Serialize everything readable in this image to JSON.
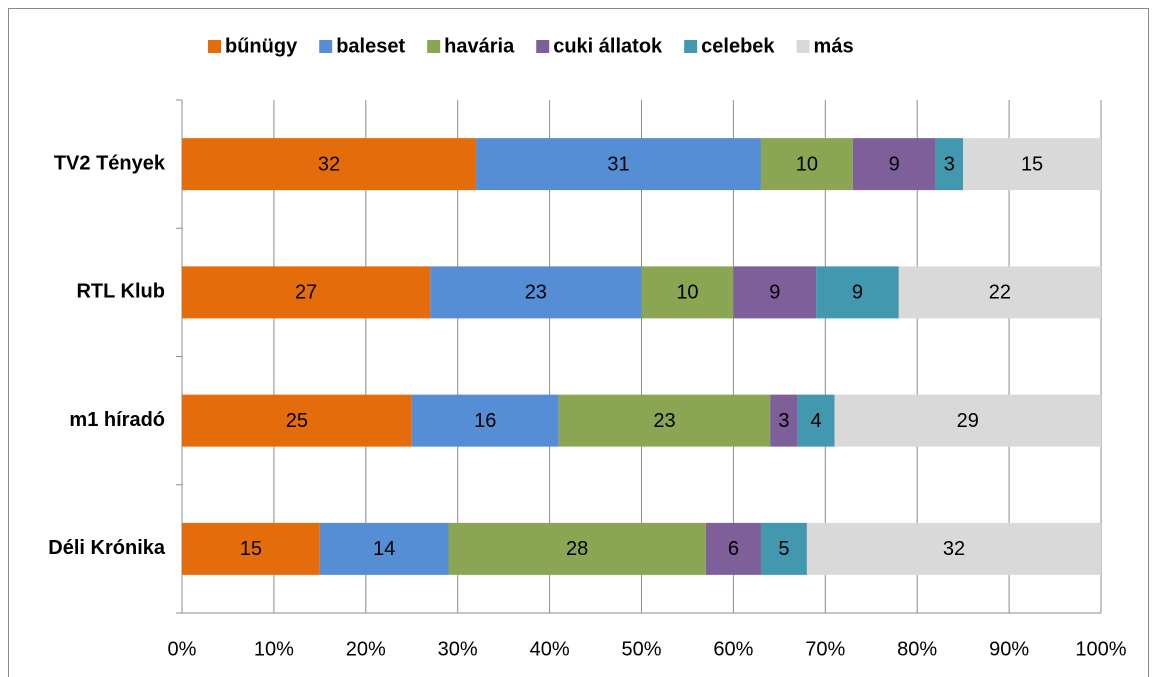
{
  "chart_data": {
    "type": "stacked-bar-horizontal",
    "categories": [
      "TV2 Tények",
      "RTL Klub",
      "m1 híradó",
      "Déli Krónika"
    ],
    "series": [
      {
        "name": "bűnügy",
        "color": "#e46c0a",
        "values": [
          32,
          27,
          25,
          15
        ]
      },
      {
        "name": "baleset",
        "color": "#558ed5",
        "values": [
          31,
          23,
          16,
          14
        ]
      },
      {
        "name": "havária",
        "color": "#8aa653",
        "values": [
          10,
          10,
          23,
          28
        ]
      },
      {
        "name": "cuki állatok",
        "color": "#7f5f9a",
        "values": [
          9,
          9,
          3,
          6
        ]
      },
      {
        "name": "celebek",
        "color": "#4298af",
        "values": [
          3,
          9,
          4,
          5
        ]
      },
      {
        "name": "más",
        "color": "#d9d9d9",
        "values": [
          15,
          22,
          29,
          32
        ]
      }
    ],
    "xlim": [
      0,
      100
    ],
    "xticks": [
      {
        "value": 0,
        "label": "0%"
      },
      {
        "value": 10,
        "label": "10%"
      },
      {
        "value": 20,
        "label": "20%"
      },
      {
        "value": 30,
        "label": "30%"
      },
      {
        "value": 40,
        "label": "40%"
      },
      {
        "value": 50,
        "label": "50%"
      },
      {
        "value": 60,
        "label": "60%"
      },
      {
        "value": 70,
        "label": "70%"
      },
      {
        "value": 80,
        "label": "80%"
      },
      {
        "value": 90,
        "label": "90%"
      },
      {
        "value": 100,
        "label": "100%"
      }
    ],
    "grid": true,
    "legend": "top"
  }
}
